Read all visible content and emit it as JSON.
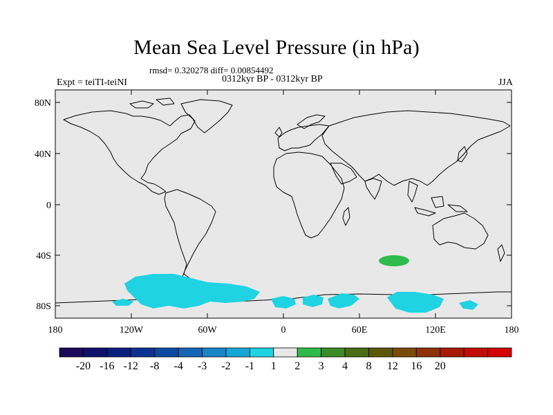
{
  "title": "Mean Sea Level Pressure (in hPa)",
  "stats_line": "rmsd= 0.320278 diff= 0.00854492",
  "period_line": "0312kyr BP - 0312kyr BP",
  "experiment_label": "Expt = teiTI-teiNI",
  "season": "JJA",
  "axes": {
    "y_ticks": [
      "80N",
      "40N",
      "0",
      "40S",
      "80S"
    ],
    "x_ticks": [
      "180",
      "120W",
      "60W",
      "0",
      "60E",
      "120E",
      "180"
    ]
  },
  "colorbar": {
    "labels": [
      "-20",
      "-16",
      "-12",
      "-8",
      "-4",
      "-3",
      "-2",
      "-1",
      "1",
      "2",
      "3",
      "4",
      "8",
      "12",
      "16",
      "20"
    ],
    "colors": [
      "#1c0a5a",
      "#10126e",
      "#0a2080",
      "#0c3291",
      "#0a4aa3",
      "#1565b6",
      "#1a86c8",
      "#16a7d6",
      "#1fd3e2",
      "#e7e7e7",
      "#2fbb4b",
      "#3a8c26",
      "#486d12",
      "#5c580a",
      "#7a4b08",
      "#8e3206",
      "#a81a05",
      "#c40c05",
      "#d40404"
    ]
  },
  "map_colors": {
    "ocean_land_bg": "#e8e8e8",
    "negative_anomaly": "#1fd3e2",
    "positive_anomaly": "#2fbb4b"
  }
}
